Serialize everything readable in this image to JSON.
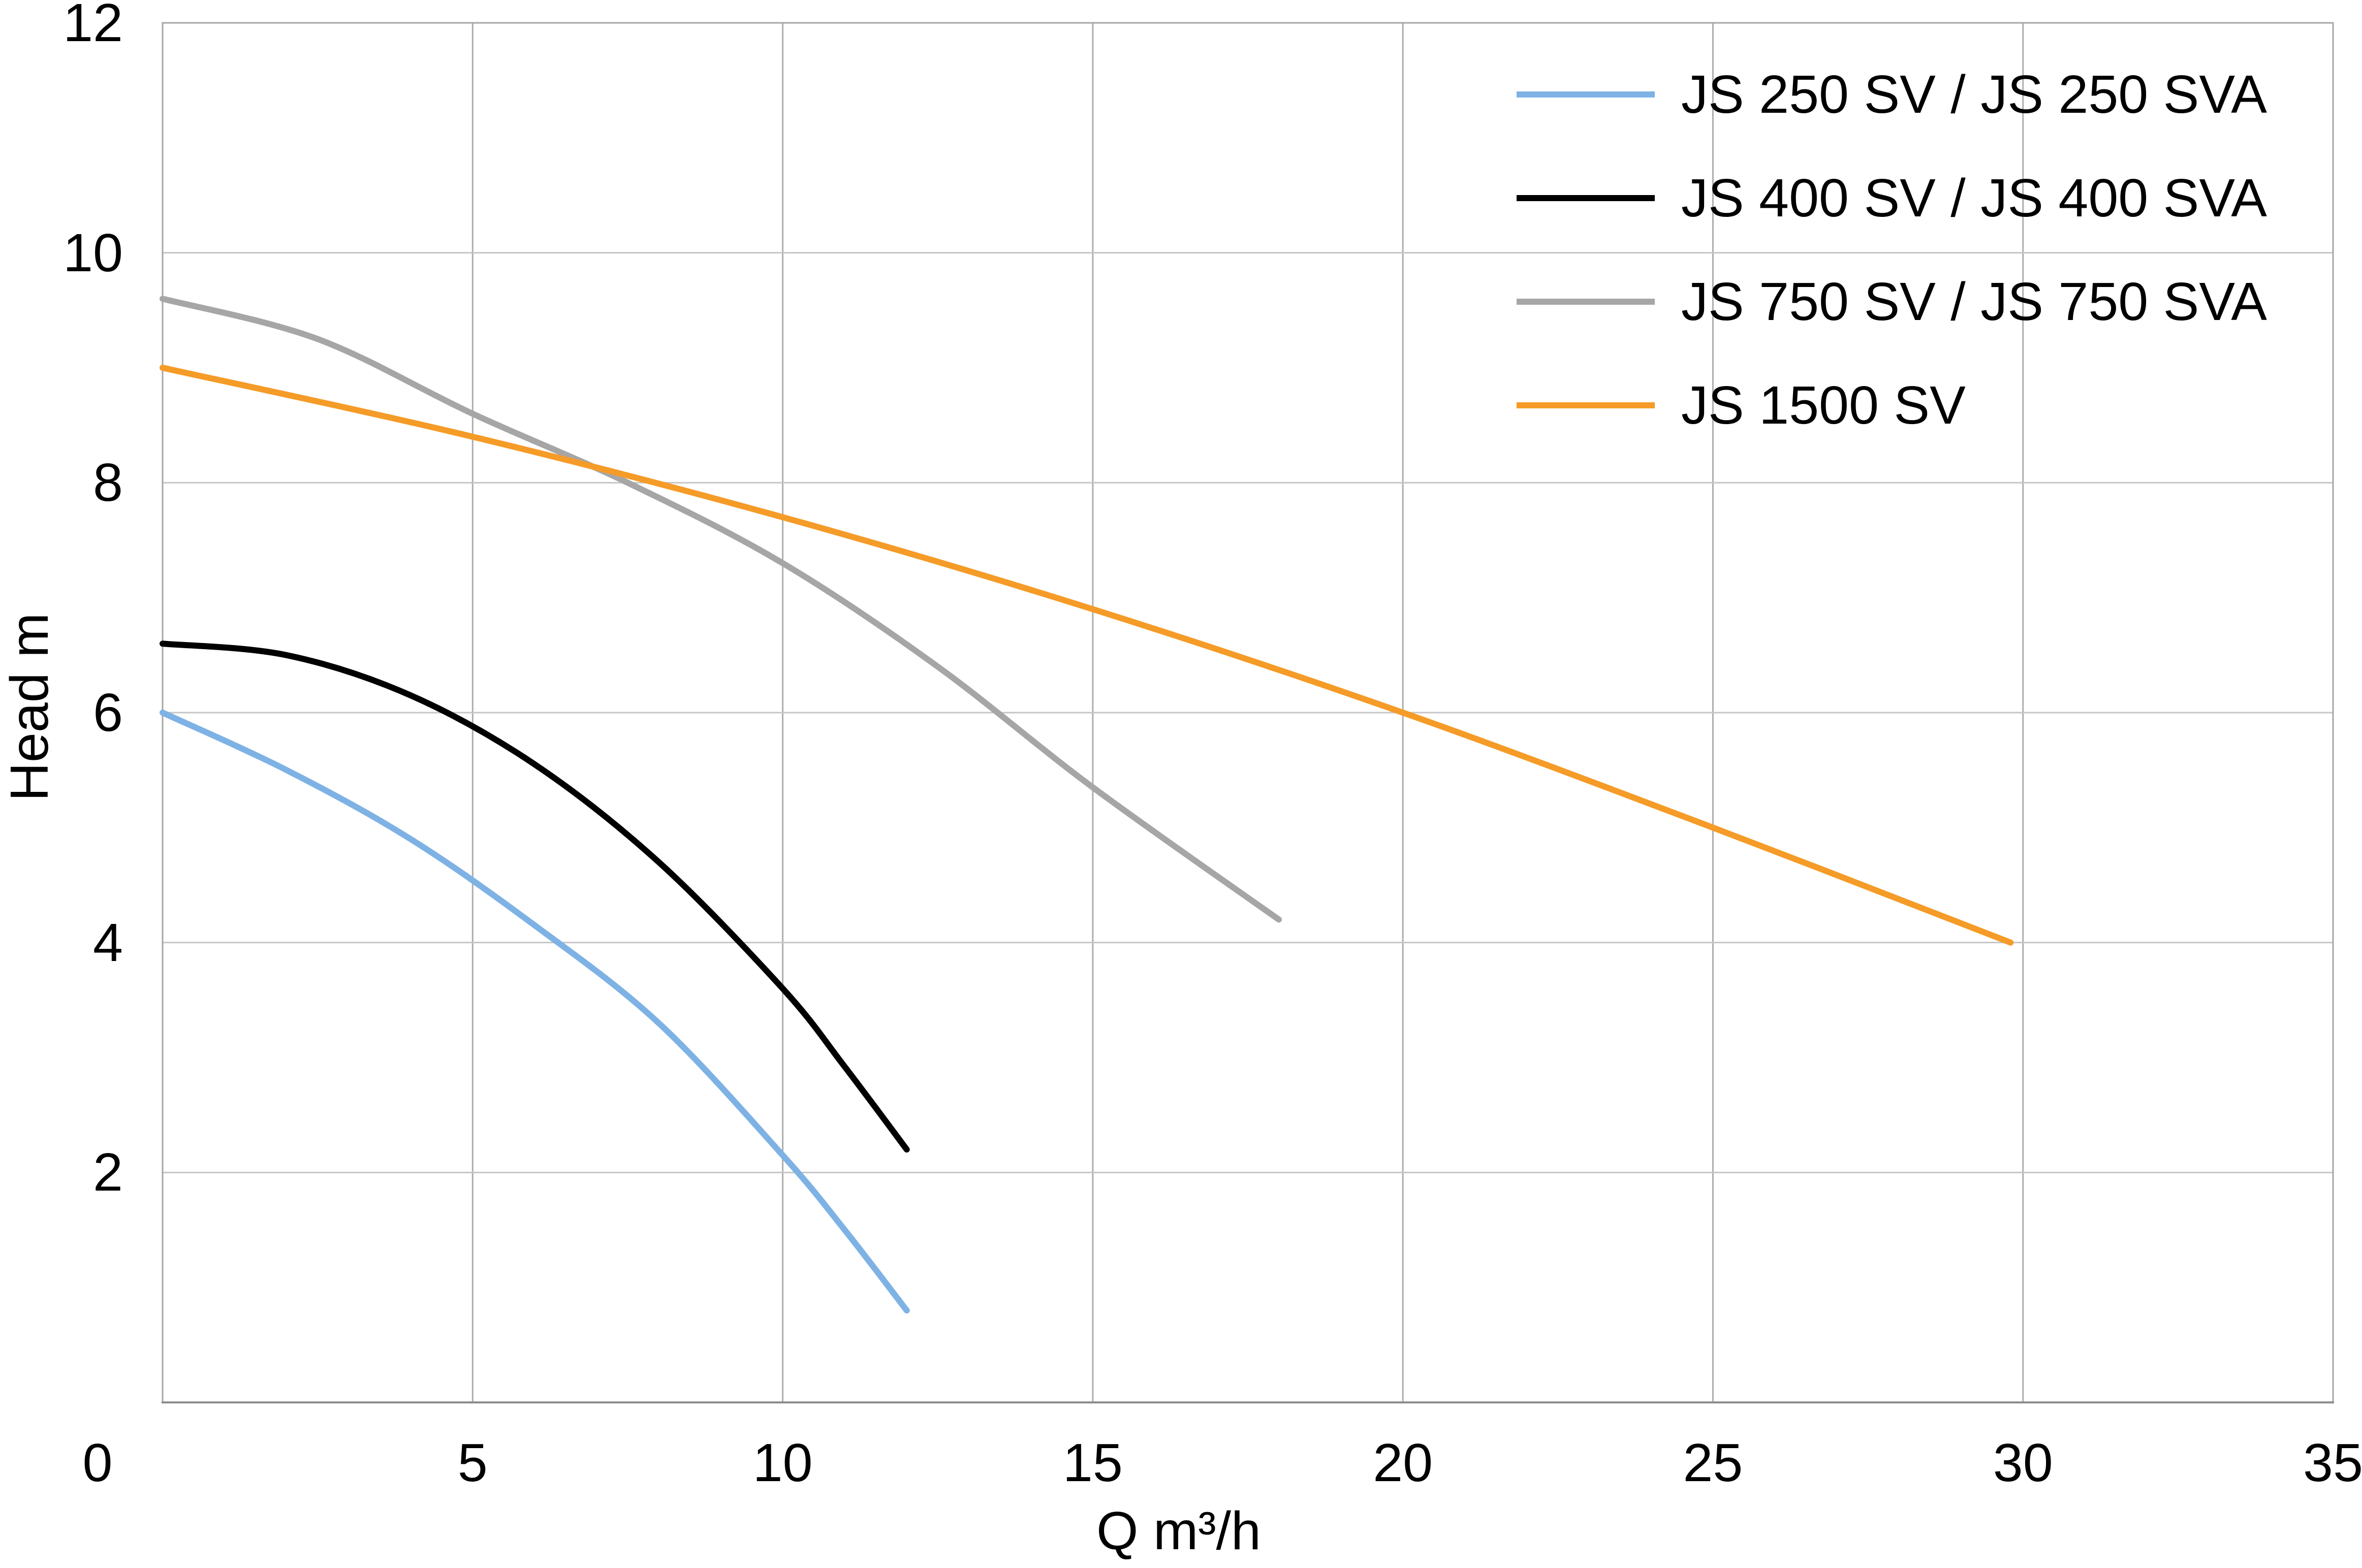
{
  "chart_data": {
    "type": "line",
    "title": "",
    "xlabel": "Q m³/h",
    "ylabel": "Head m",
    "xlim": [
      0,
      35
    ],
    "ylim": [
      0,
      12
    ],
    "x_ticks": [
      0,
      5,
      10,
      15,
      20,
      25,
      30,
      35
    ],
    "y_ticks": [
      2,
      4,
      6,
      8,
      10,
      12
    ],
    "grid": {
      "x_step": 5,
      "y_step": 2,
      "horizontal_color": "#C6C6C6",
      "vertical_color": "#ADADAD",
      "border_color": "#A6A6A6",
      "bottom_axis_color": "#8C8C8C"
    },
    "legend_position": "top-right",
    "series": [
      {
        "name": "JS 250 SV / JS 250 SVA",
        "color": "#7EB2E4",
        "points": [
          [
            0,
            6.0
          ],
          [
            2,
            5.5
          ],
          [
            4,
            4.9
          ],
          [
            6,
            4.15
          ],
          [
            8,
            3.3
          ],
          [
            10,
            2.15
          ],
          [
            11,
            1.5
          ],
          [
            12,
            0.8
          ]
        ]
      },
      {
        "name": "JS 400 SV / JS 400 SVA",
        "color": "#000000",
        "points": [
          [
            0,
            6.6
          ],
          [
            2,
            6.5
          ],
          [
            4,
            6.15
          ],
          [
            6,
            5.55
          ],
          [
            8,
            4.7
          ],
          [
            10,
            3.6
          ],
          [
            11,
            2.92
          ],
          [
            12,
            2.2
          ]
        ]
      },
      {
        "name": "JS 750 SV / JS 750 SVA",
        "color": "#A6A6A6",
        "points": [
          [
            0,
            9.6
          ],
          [
            2.5,
            9.25
          ],
          [
            5,
            8.6
          ],
          [
            7.5,
            8.0
          ],
          [
            10,
            7.3
          ],
          [
            12.5,
            6.4
          ],
          [
            15,
            5.35
          ],
          [
            18,
            4.2
          ]
        ]
      },
      {
        "name": "JS 1500 SV",
        "color": "#F59B27",
        "points": [
          [
            0,
            9.0
          ],
          [
            5,
            8.4
          ],
          [
            10,
            7.7
          ],
          [
            15,
            6.9
          ],
          [
            20,
            6.0
          ],
          [
            25,
            5.0
          ],
          [
            29.8,
            4.0
          ]
        ]
      }
    ]
  }
}
